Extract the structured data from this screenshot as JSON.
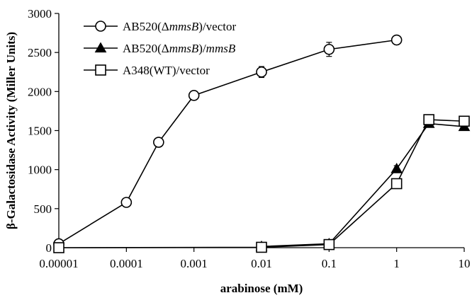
{
  "chart_data": {
    "type": "line",
    "title": "",
    "xlabel": "arabinose (mM)",
    "ylabel": "β-Galactosidase Activity (Miller Units)",
    "xscale": "log",
    "xlim": [
      1e-05,
      10
    ],
    "ylim": [
      0,
      3000
    ],
    "x_ticks": [
      {
        "value": 1e-05,
        "label": "0.00001"
      },
      {
        "value": 0.0001,
        "label": "0.0001"
      },
      {
        "value": 0.001,
        "label": "0.001"
      },
      {
        "value": 0.01,
        "label": "0.01"
      },
      {
        "value": 0.1,
        "label": "0.1"
      },
      {
        "value": 1,
        "label": "1"
      },
      {
        "value": 10,
        "label": "10"
      }
    ],
    "y_ticks": [
      {
        "value": 0,
        "label": "0"
      },
      {
        "value": 500,
        "label": "500"
      },
      {
        "value": 1000,
        "label": "1000"
      },
      {
        "value": 1500,
        "label": "1500"
      },
      {
        "value": 2000,
        "label": "2000"
      },
      {
        "value": 2500,
        "label": "2500"
      },
      {
        "value": 3000,
        "label": "3000"
      }
    ],
    "grid": false,
    "legend": {
      "placement": "top-left"
    },
    "series": [
      {
        "name": "AB520(ΔmmsB)/vector",
        "name_parts": [
          {
            "text": "AB520(Δ",
            "italic": false
          },
          {
            "text": "mmsB",
            "italic": true
          },
          {
            "text": ")/vector",
            "italic": false
          }
        ],
        "marker": "circle-open",
        "color": "#000000",
        "points": [
          {
            "x": 1e-05,
            "y": 50,
            "err": 0
          },
          {
            "x": 0.0001,
            "y": 580,
            "err": 20
          },
          {
            "x": 0.0003,
            "y": 1350,
            "err": 30
          },
          {
            "x": 0.001,
            "y": 1950,
            "err": 20
          },
          {
            "x": 0.01,
            "y": 2250,
            "err": 70
          },
          {
            "x": 0.1,
            "y": 2540,
            "err": 90
          },
          {
            "x": 1,
            "y": 2660,
            "err": 20
          }
        ]
      },
      {
        "name": "AB520(ΔmmsB)/mmsB",
        "name_parts": [
          {
            "text": "AB520(Δ",
            "italic": false
          },
          {
            "text": "mmsB",
            "italic": true
          },
          {
            "text": ")/",
            "italic": false
          },
          {
            "text": "mmsB",
            "italic": true
          }
        ],
        "marker": "triangle-filled",
        "color": "#000000",
        "points": [
          {
            "x": 0.01,
            "y": 15,
            "err": 0
          },
          {
            "x": 0.1,
            "y": 50,
            "err": 0
          },
          {
            "x": 1,
            "y": 1010,
            "err": 40
          },
          {
            "x": 3,
            "y": 1590,
            "err": 40
          },
          {
            "x": 10,
            "y": 1550,
            "err": 30
          }
        ]
      },
      {
        "name": "A348(WT)/vector",
        "name_parts": [
          {
            "text": "A348(WT)/vector",
            "italic": false
          }
        ],
        "marker": "square-open",
        "color": "#000000",
        "points": [
          {
            "x": 1e-05,
            "y": 0,
            "err": 0
          },
          {
            "x": 0.01,
            "y": 5,
            "err": 0
          },
          {
            "x": 0.1,
            "y": 40,
            "err": 0
          },
          {
            "x": 1,
            "y": 820,
            "err": 30
          },
          {
            "x": 3,
            "y": 1640,
            "err": 30
          },
          {
            "x": 10,
            "y": 1620,
            "err": 30
          }
        ]
      }
    ]
  }
}
